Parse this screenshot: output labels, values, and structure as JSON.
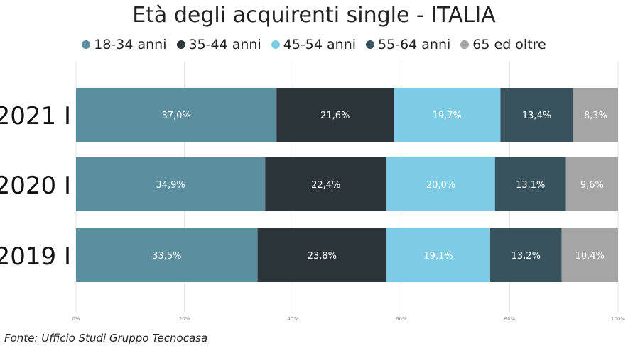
{
  "chart_data": {
    "type": "bar",
    "orientation": "horizontal",
    "stacked": "percent",
    "title": "Età degli acquirenti single - ITALIA",
    "categories": [
      "2021 I",
      "2020 I",
      "2019 I"
    ],
    "series": [
      {
        "name": "18-34 anni",
        "color": "#5b8fa0",
        "labelColor": "#ffffff",
        "values": [
          37.0,
          34.9,
          33.5
        ],
        "labels": [
          "37,0%",
          "34,9%",
          "33,5%"
        ]
      },
      {
        "name": "35-44 anni",
        "color": "#2a3439",
        "labelColor": "#ffffff",
        "values": [
          21.6,
          22.4,
          23.8
        ],
        "labels": [
          "21,6%",
          "22,4%",
          "23,8%"
        ]
      },
      {
        "name": "45-54 anni",
        "color": "#7ecbe5",
        "labelColor": "#ffffff",
        "values": [
          19.7,
          20.0,
          19.1
        ],
        "labels": [
          "19,7%",
          "20,0%",
          "19,1%"
        ]
      },
      {
        "name": "55-64 anni",
        "color": "#38525e",
        "labelColor": "#ffffff",
        "values": [
          13.4,
          13.1,
          13.2
        ],
        "labels": [
          "13,4%",
          "13,1%",
          "13,2%"
        ]
      },
      {
        "name": "65 ed oltre",
        "color": "#a5a5a5",
        "labelColor": "#ffffff",
        "values": [
          8.3,
          9.6,
          10.4
        ],
        "labels": [
          "8,3%",
          "9,6%",
          "10,4%"
        ]
      }
    ],
    "xlim": [
      0,
      100
    ],
    "xticks": [
      "0%",
      "20%",
      "40%",
      "60%",
      "80%",
      "100%"
    ],
    "grid": true,
    "legend_position": "top"
  },
  "source": "Fonte: Ufficio Studi Gruppo Tecnocasa"
}
